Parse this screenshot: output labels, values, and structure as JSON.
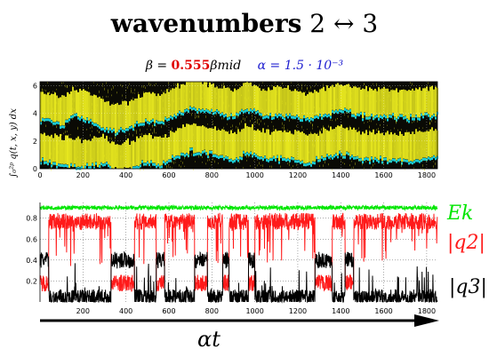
{
  "title": {
    "word": "wavenumbers",
    "rest": "2 ↔ 3"
  },
  "subtitle": {
    "beta_prefix": "β =",
    "beta_value": "0.555",
    "beta_suffix": "βmid",
    "alpha": "α = 1.5 · 10⁻³"
  },
  "top_panel": {
    "ylabel": "∫₀²ᵖ q(t, x, y) dx",
    "colors": {
      "background": "#0a0a05",
      "band": "#e6e61e",
      "edge": "#19c8d2"
    }
  },
  "bottom_xlabel": "αt",
  "chart_data": [
    {
      "type": "heatmap",
      "xlim": [
        0,
        1850
      ],
      "ylim": [
        0,
        6.28
      ],
      "x_ticks": [
        0,
        200,
        400,
        600,
        800,
        1000,
        1200,
        1400,
        1600,
        1800
      ],
      "y_ticks": [
        0,
        2,
        4,
        6
      ],
      "band_center_1": [
        [
          0,
          4.6
        ],
        [
          100,
          4.2
        ],
        [
          150,
          4.8
        ],
        [
          200,
          4.7
        ],
        [
          270,
          4.1
        ],
        [
          350,
          3.6
        ],
        [
          430,
          4.0
        ],
        [
          500,
          4.6
        ],
        [
          560,
          4.3
        ],
        [
          620,
          4.9
        ],
        [
          700,
          5.4
        ],
        [
          800,
          5.1
        ],
        [
          900,
          4.7
        ],
        [
          960,
          5.3
        ],
        [
          1050,
          4.8
        ],
        [
          1150,
          4.9
        ],
        [
          1250,
          4.5
        ],
        [
          1320,
          4.9
        ],
        [
          1400,
          5.2
        ],
        [
          1500,
          4.8
        ],
        [
          1600,
          4.8
        ],
        [
          1700,
          4.7
        ],
        [
          1800,
          4.9
        ],
        [
          1850,
          4.9
        ]
      ],
      "band_center_2": [
        [
          0,
          1.6
        ],
        [
          100,
          1.3
        ],
        [
          200,
          1.1
        ],
        [
          300,
          1.4
        ],
        [
          350,
          0.8
        ],
        [
          430,
          1.1
        ],
        [
          500,
          1.5
        ],
        [
          560,
          1.2
        ],
        [
          620,
          1.8
        ],
        [
          700,
          2.3
        ],
        [
          800,
          2.0
        ],
        [
          900,
          1.6
        ],
        [
          960,
          2.2
        ],
        [
          1050,
          1.7
        ],
        [
          1150,
          1.8
        ],
        [
          1250,
          1.4
        ],
        [
          1320,
          1.8
        ],
        [
          1400,
          2.1
        ],
        [
          1500,
          1.7
        ],
        [
          1600,
          1.7
        ],
        [
          1700,
          1.6
        ],
        [
          1800,
          1.8
        ],
        [
          1850,
          1.8
        ]
      ],
      "grid": true
    },
    {
      "type": "line",
      "xlim": [
        0,
        1850
      ],
      "ylim": [
        0,
        0.95
      ],
      "x_ticks": [
        200,
        400,
        600,
        800,
        1000,
        1200,
        1400,
        1600,
        1800
      ],
      "y_ticks": [
        0.2,
        0.4,
        0.6,
        0.8
      ],
      "grid": true,
      "series": [
        {
          "name": "E_k",
          "legend": "Ek",
          "color": "#00e600",
          "level": 0.9,
          "jitter": 0.02
        },
        {
          "name": "|q2|",
          "legend": "|q2|",
          "color": "#ff1a1a",
          "high": 0.77,
          "low": 0.18,
          "jitter": 0.08
        },
        {
          "name": "|q3|",
          "legend": "|q3|",
          "color": "#000000",
          "high": 0.4,
          "low": 0.04,
          "jitter": 0.08
        }
      ],
      "q2_low_intervals": [
        [
          0,
          40
        ],
        [
          330,
          440
        ],
        [
          540,
          580
        ],
        [
          720,
          780
        ],
        [
          850,
          880
        ],
        [
          970,
          1000
        ],
        [
          1280,
          1360
        ],
        [
          1420,
          1460
        ]
      ],
      "q3_high_intervals": [
        [
          0,
          40
        ],
        [
          330,
          440
        ],
        [
          540,
          580
        ],
        [
          720,
          780
        ],
        [
          850,
          880
        ],
        [
          970,
          1000
        ],
        [
          1280,
          1360
        ],
        [
          1420,
          1460
        ]
      ],
      "arrow": {
        "from": 0,
        "to": 1850
      }
    }
  ]
}
